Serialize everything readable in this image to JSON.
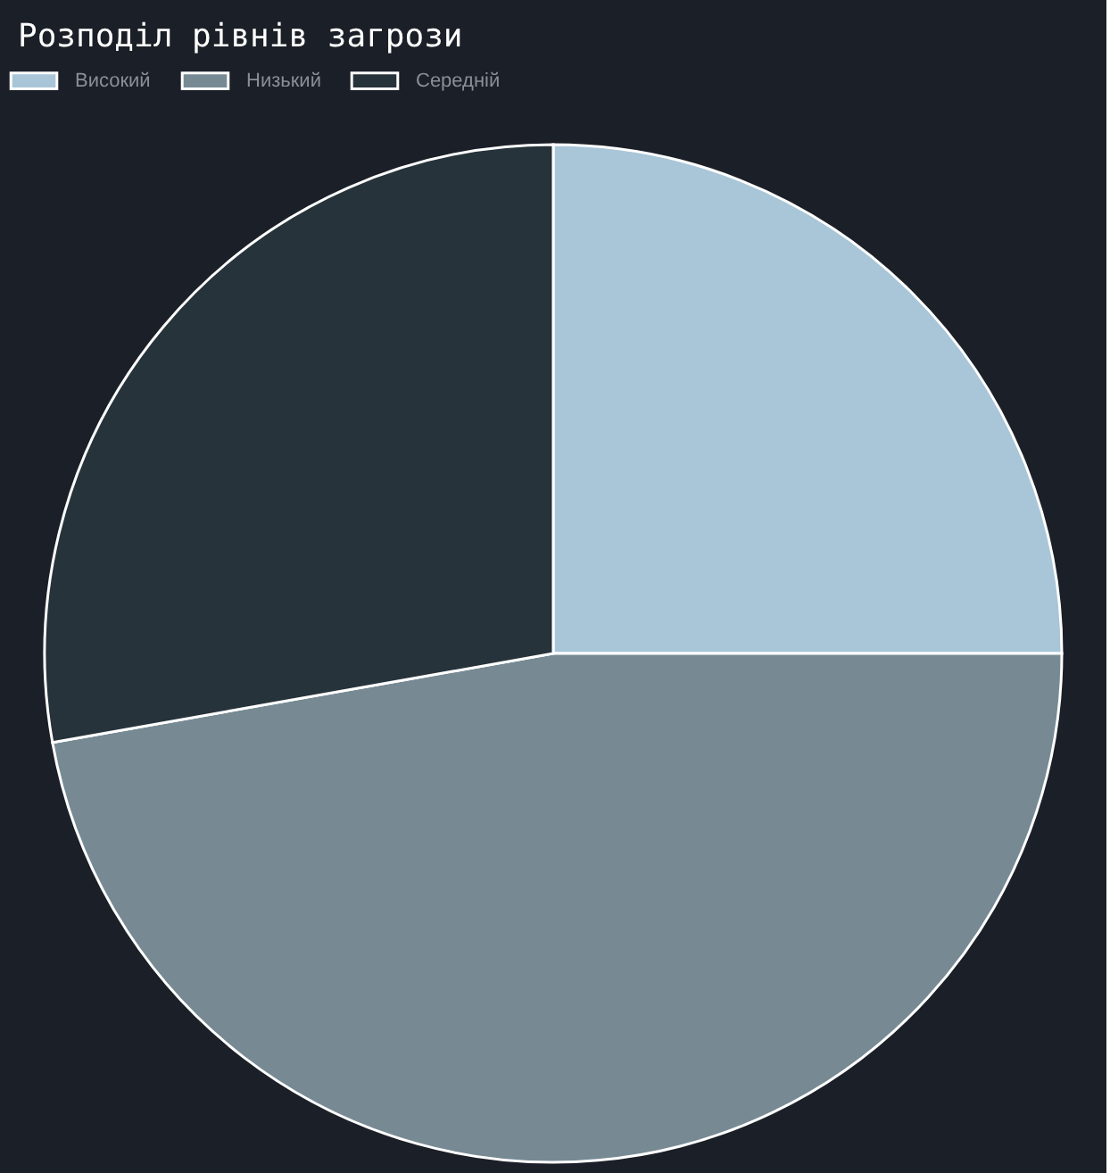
{
  "chart_data": {
    "type": "pie",
    "title": "Розподіл рівнів загрози",
    "categories": [
      "Високий",
      "Низький",
      "Середній"
    ],
    "values": [
      25,
      47.2,
      27.8
    ],
    "colors": [
      "#a9c6d8",
      "#778a94",
      "#27333b"
    ],
    "legend": "top"
  }
}
